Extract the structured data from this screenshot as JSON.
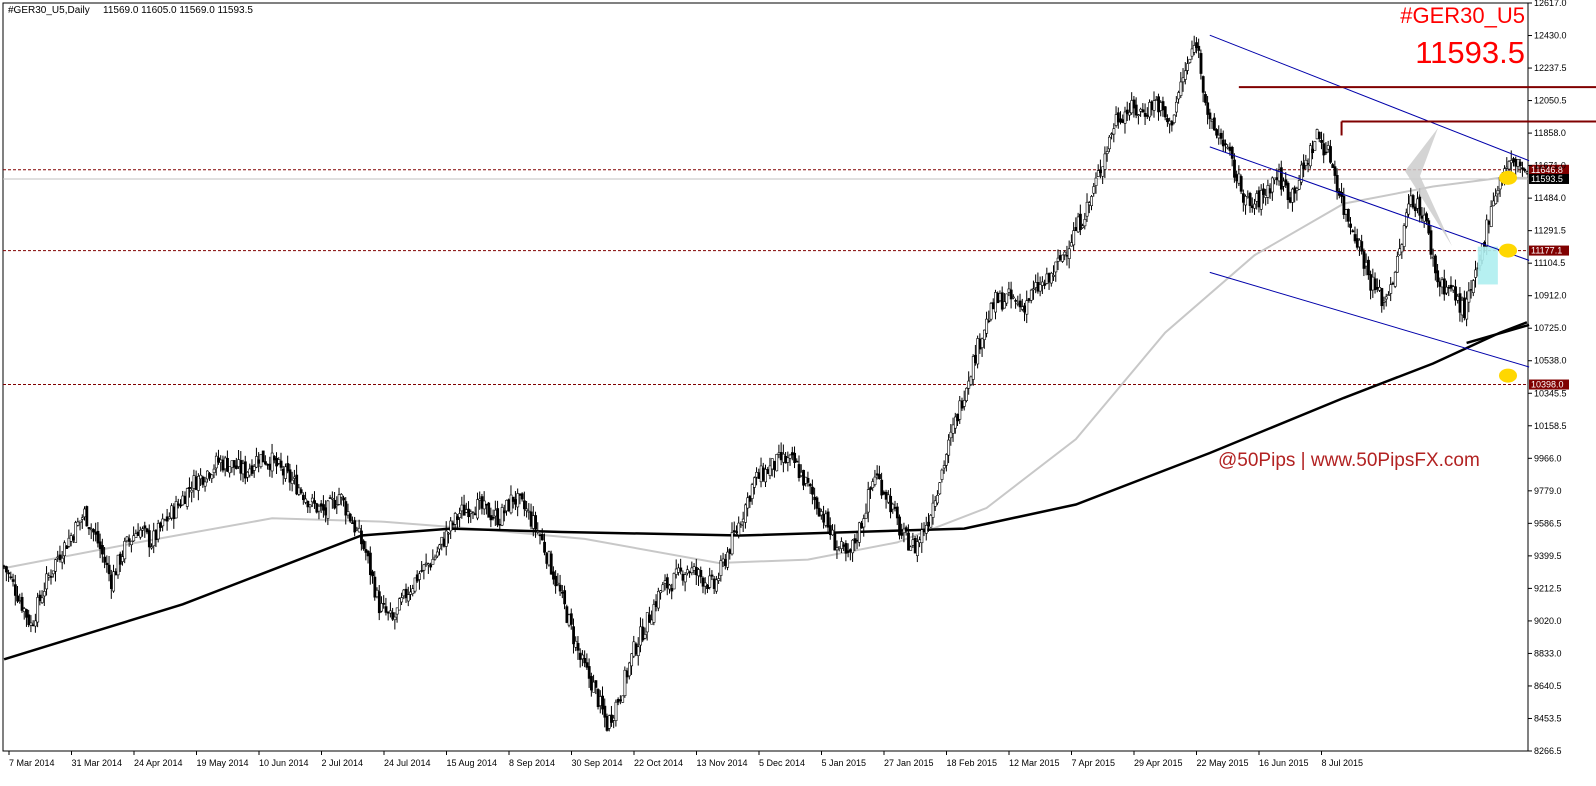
{
  "header": {
    "symbol_info": "#GER30_U5,Daily",
    "ohlc": "11569.0 11605.0 11569.0 11593.5"
  },
  "overlay": {
    "symbol": "#GER30_U5",
    "price": "11593.5",
    "watermark": "@50Pips | www.50PipsFX.com"
  },
  "colors": {
    "background": "#ffffff",
    "candle": "#000000",
    "ma_long": "#000000",
    "ma_mid": "#c8c8c8",
    "channel": "#0000aa",
    "resistance": "#800000",
    "level_dashed": "#800000",
    "tag_bg": "#800000",
    "current_price_tag": "#000000",
    "marker": "#ffd700",
    "highlight_box": "#aeeef0",
    "big_text": "#ff0000"
  },
  "chart_data": {
    "type": "candlestick",
    "ylim": [
      8266.5,
      12617.0
    ],
    "y_ticks": [
      "12617.0",
      "12430.0",
      "12237.5",
      "12050.5",
      "11858.0",
      "11671.0",
      "11484.0",
      "11291.5",
      "11104.5",
      "10912.0",
      "10725.0",
      "10538.0",
      "10345.5",
      "10158.5",
      "9966.0",
      "9779.0",
      "9586.5",
      "9399.5",
      "9212.5",
      "9020.0",
      "8833.0",
      "8640.5",
      "8453.5",
      "8266.5"
    ],
    "x_ticks": [
      "7 Mar 2014",
      "31 Mar 2014",
      "24 Apr 2014",
      "19 May 2014",
      "10 Jun 2014",
      "2 Jul 2014",
      "24 Jul 2014",
      "15 Aug 2014",
      "8 Sep 2014",
      "30 Sep 2014",
      "22 Oct 2014",
      "13 Nov 2014",
      "5 Dec 2014",
      "5 Jan 2015",
      "27 Jan 2015",
      "18 Feb 2015",
      "12 Mar 2015",
      "7 Apr 2015",
      "29 Apr 2015",
      "22 May 2015",
      "16 Jun 2015",
      "8 Jul 2015"
    ],
    "levels": [
      {
        "value": 11646.8,
        "label": "11646.8",
        "style": "dashed"
      },
      {
        "value": 11177.1,
        "label": "11177.1",
        "style": "dashed"
      },
      {
        "value": 10398.0,
        "label": "10398.0",
        "style": "dashed"
      }
    ],
    "current_price": {
      "value": 11593.5,
      "label": "11593.5"
    },
    "close_path": [
      [
        0,
        9340
      ],
      [
        6,
        9180
      ],
      [
        12,
        9000
      ],
      [
        18,
        9220
      ],
      [
        24,
        9400
      ],
      [
        30,
        9520
      ],
      [
        36,
        9650
      ],
      [
        42,
        9480
      ],
      [
        48,
        9260
      ],
      [
        54,
        9450
      ],
      [
        60,
        9560
      ],
      [
        66,
        9480
      ],
      [
        72,
        9600
      ],
      [
        78,
        9700
      ],
      [
        84,
        9820
      ],
      [
        90,
        9880
      ],
      [
        96,
        9950
      ],
      [
        102,
        9930
      ],
      [
        108,
        9890
      ],
      [
        114,
        9980
      ],
      [
        120,
        9950
      ],
      [
        126,
        9870
      ],
      [
        132,
        9800
      ],
      [
        138,
        9700
      ],
      [
        144,
        9650
      ],
      [
        150,
        9760
      ],
      [
        156,
        9600
      ],
      [
        162,
        9420
      ],
      [
        168,
        9110
      ],
      [
        174,
        9020
      ],
      [
        180,
        9180
      ],
      [
        186,
        9300
      ],
      [
        192,
        9380
      ],
      [
        198,
        9520
      ],
      [
        204,
        9650
      ],
      [
        210,
        9700
      ],
      [
        216,
        9660
      ],
      [
        222,
        9620
      ],
      [
        228,
        9740
      ],
      [
        234,
        9660
      ],
      [
        240,
        9520
      ],
      [
        246,
        9300
      ],
      [
        252,
        9060
      ],
      [
        258,
        8800
      ],
      [
        264,
        8640
      ],
      [
        270,
        8420
      ],
      [
        276,
        8600
      ],
      [
        282,
        8850
      ],
      [
        288,
        9020
      ],
      [
        294,
        9200
      ],
      [
        300,
        9260
      ],
      [
        306,
        9330
      ],
      [
        312,
        9280
      ],
      [
        318,
        9220
      ],
      [
        324,
        9420
      ],
      [
        330,
        9620
      ],
      [
        336,
        9840
      ],
      [
        342,
        9900
      ],
      [
        348,
        9960
      ],
      [
        354,
        9940
      ],
      [
        360,
        9800
      ],
      [
        366,
        9660
      ],
      [
        372,
        9480
      ],
      [
        378,
        9380
      ],
      [
        384,
        9600
      ],
      [
        390,
        9880
      ],
      [
        396,
        9740
      ],
      [
        402,
        9520
      ],
      [
        408,
        9450
      ],
      [
        414,
        9620
      ],
      [
        420,
        9900
      ],
      [
        426,
        10180
      ],
      [
        432,
        10450
      ],
      [
        438,
        10700
      ],
      [
        444,
        10880
      ],
      [
        450,
        10900
      ],
      [
        456,
        10850
      ],
      [
        462,
        10950
      ],
      [
        468,
        11000
      ],
      [
        474,
        11150
      ],
      [
        480,
        11300
      ],
      [
        486,
        11450
      ],
      [
        492,
        11700
      ],
      [
        498,
        11950
      ],
      [
        504,
        12000
      ],
      [
        510,
        11980
      ],
      [
        516,
        12050
      ],
      [
        522,
        11900
      ],
      [
        528,
        12180
      ],
      [
        534,
        12400
      ],
      [
        540,
        11900
      ],
      [
        546,
        11820
      ],
      [
        552,
        11600
      ],
      [
        558,
        11420
      ],
      [
        564,
        11500
      ],
      [
        570,
        11620
      ],
      [
        576,
        11500
      ],
      [
        582,
        11650
      ],
      [
        588,
        11850
      ],
      [
        594,
        11720
      ],
      [
        600,
        11420
      ],
      [
        606,
        11250
      ],
      [
        612,
        11000
      ],
      [
        618,
        10880
      ],
      [
        624,
        11100
      ],
      [
        630,
        11500
      ],
      [
        636,
        11380
      ],
      [
        642,
        11000
      ],
      [
        648,
        10950
      ],
      [
        654,
        10820
      ],
      [
        660,
        11050
      ],
      [
        666,
        11450
      ],
      [
        672,
        11650
      ],
      [
        678,
        11700
      ],
      [
        682,
        11593.5
      ]
    ],
    "ma_long": [
      [
        0,
        8800
      ],
      [
        80,
        9120
      ],
      [
        160,
        9520
      ],
      [
        200,
        9560
      ],
      [
        250,
        9540
      ],
      [
        330,
        9520
      ],
      [
        430,
        9560
      ],
      [
        480,
        9700
      ],
      [
        540,
        10000
      ],
      [
        600,
        10320
      ],
      [
        640,
        10520
      ],
      [
        670,
        10700
      ],
      [
        682,
        10760
      ]
    ],
    "ma_mid": [
      [
        0,
        9330
      ],
      [
        60,
        9480
      ],
      [
        120,
        9620
      ],
      [
        170,
        9600
      ],
      [
        210,
        9560
      ],
      [
        260,
        9500
      ],
      [
        320,
        9360
      ],
      [
        360,
        9380
      ],
      [
        400,
        9480
      ],
      [
        440,
        9680
      ],
      [
        480,
        10080
      ],
      [
        520,
        10700
      ],
      [
        560,
        11150
      ],
      [
        600,
        11450
      ],
      [
        640,
        11550
      ],
      [
        670,
        11600
      ],
      [
        682,
        11600
      ]
    ],
    "channel_upper": [
      [
        540,
        12430
      ],
      [
        683,
        11700
      ]
    ],
    "channel_middle": [
      [
        540,
        11780
      ],
      [
        683,
        11120
      ]
    ],
    "channel_lower": [
      [
        540,
        11050
      ],
      [
        683,
        10500
      ]
    ],
    "resistances": [
      {
        "from": 553,
        "to": 736,
        "value": 12128
      },
      {
        "from": 599,
        "to": 728,
        "value": 11928
      }
    ],
    "ma_long_tail": [
      [
        655,
        10640
      ],
      [
        683,
        10745
      ]
    ],
    "markers": [
      11600,
      11177,
      10450
    ],
    "highlight_box": {
      "from": 660,
      "to": 669,
      "y0": 11200,
      "y1": 10980
    }
  }
}
